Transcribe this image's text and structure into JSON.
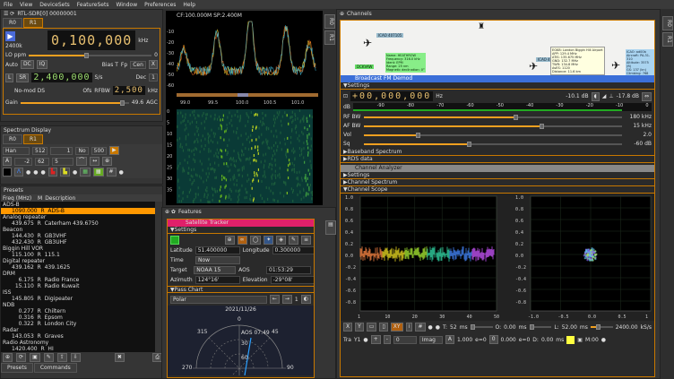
{
  "menu": [
    "File",
    "View",
    "DeviceSets",
    "FeatureSets",
    "Window",
    "Preferences",
    "Help"
  ],
  "device": {
    "title": "RTL-SDR[0] 00000001",
    "tabs": [
      "R0",
      "R1"
    ],
    "active_tab": "R1",
    "sample_rate_label": "2400k",
    "frequency": "0,100,000",
    "freq_unit": "kHz",
    "lo_ppm_label": "LO ppm",
    "lo_ppm_value": "0",
    "auto": "Auto",
    "dc": "DC",
    "iq": "IQ",
    "bias_t": "Bias T",
    "fp": "Fp",
    "fp_select": "Cen",
    "x": "X",
    "l": "L",
    "sr": "SR",
    "sr_value": "2,400,000",
    "sr_unit": "S/s",
    "dec_label": "Dec",
    "dec_value": "1",
    "nomod": "No-mod DS",
    "ofs": "Ofs",
    "rfbw": "RFBW",
    "rfbw_value": "2,500",
    "rfbw_unit": "kHz",
    "gain_label": "Gain",
    "gain_value": "49.6",
    "agc": "AGC",
    "gain_level": 0.92
  },
  "spectrum_display": {
    "title": "Spectrum Display",
    "tabs": [
      "R0",
      "R1"
    ],
    "active_tab": "R1",
    "window": "Han",
    "fft": "512",
    "avg": "1",
    "avg_mode": "No",
    "rate": "500",
    "a": "A",
    "ref": "-2",
    "range": "62",
    "step": "5"
  },
  "presets": {
    "title": "Presets",
    "col_freq": "Freq (MHz)",
    "col_m": "M",
    "col_desc": "Description",
    "groups": [
      {
        "name": "ADS-B",
        "items": [
          "1090.000  R  ADS-B"
        ]
      },
      {
        "name": "Analog repeater",
        "items": [
          "439.675  R  Caterham 439.6750"
        ]
      },
      {
        "name": "Beacon",
        "items": [
          "144.430  R  GB3VHF",
          "432.430  R  GB3UHF"
        ]
      },
      {
        "name": "Biggin Hill VOR",
        "items": [
          "115.100  R  115.1"
        ]
      },
      {
        "name": "Digital repeater",
        "items": [
          "439.162  R  439.1625"
        ]
      },
      {
        "name": "DRM",
        "items": [
          "    6.175  R  Radio France",
          "  15.110  R  Radio Kuwait"
        ]
      },
      {
        "name": "ISS",
        "items": [
          "145.805  R  Digipeater"
        ]
      },
      {
        "name": "NDB",
        "items": [
          "    0.277  R  Chiltern",
          "    0.316  R  Epsom",
          "    0.322  R  London City"
        ]
      },
      {
        "name": "Radar",
        "items": [
          "143.053  R  Graves"
        ]
      },
      {
        "name": "Radio Astronomy",
        "items": [
          "1420.400  R  HI"
        ]
      }
    ],
    "bottom_tabs": [
      "Presets",
      "Commands"
    ]
  },
  "main_spectrum": {
    "header": "CF:100.000M SP:2.400M",
    "y_ticks": [
      "-10",
      "-20",
      "-30",
      "-40",
      "-50",
      "-60"
    ],
    "x_ticks": [
      "99.0",
      "99.5",
      "100.0",
      "100.5",
      "101.0"
    ],
    "wf_ticks": [
      "0",
      "5",
      "10",
      "15",
      "20",
      "25",
      "30",
      "35"
    ],
    "side_tabs": [
      "R0",
      "R1"
    ]
  },
  "features": {
    "title": "Features",
    "sat": {
      "title": "Satellite Tracker",
      "settings": "Settings",
      "lat_label": "Latitude",
      "lat": "51.400000",
      "lon_label": "Longitude",
      "lon": "0.300000",
      "time_label": "Time",
      "time": "Now",
      "target_label": "Target",
      "target": "NOAA 15",
      "aos_label": "AOS",
      "aos": "01:53:29",
      "az_label": "Azimuth",
      "az": "124°16'",
      "el_label": "Elevation",
      "el": "-29°08'",
      "pass_chart": "Pass Chart",
      "chart_type": "Polar",
      "pass_num": "1",
      "date": "2021/11/26",
      "polar_labels": [
        "0",
        "45",
        "90",
        "270",
        "315",
        "30",
        "60"
      ],
      "aos_tag": "AOS 07:49"
    }
  },
  "channels": {
    "title": "Channels",
    "side_tabs": [
      "R0",
      "R1"
    ],
    "map": {
      "labels": [
        "ICAO 407105",
        "DCKVAW",
        "ICAO 4071C8"
      ],
      "heathrow": [
        "Name: HEATHROW",
        "Frequency: 316.0 kHz",
        "Ident: EPM",
        "Range: 25 nm",
        "Magnetic declination: 0°"
      ],
      "airport": [
        "EGKB: London Biggin Hill Airport",
        "APP: 129.4 MHz",
        "ATIS: 135.675 MHz",
        "GND: 132.7 MHz",
        "TWR: 134.8 MHz",
        "AvES: 1120",
        "Distance: 11.6 km"
      ],
      "aircraft": [
        "ICAO: ad00b",
        "Aircraft: PA-31-310",
        "Altitude: 3575 (ft)",
        "GS: 137 (kn)",
        "Climbing: 768 (ft/m)"
      ]
    },
    "bfm": {
      "title": "Broadcast FM Demod",
      "settings": "Settings",
      "offset": "+00,000,000",
      "unit": "Hz",
      "power": "-10.1 dB",
      "squelch_pow": "-17.8 dB",
      "db": "dB",
      "meter_ticks": [
        "-90",
        "-80",
        "-70",
        "-60",
        "-50",
        "-40",
        "-30",
        "-20",
        "-10",
        "0"
      ],
      "sliders": [
        {
          "label": "RF BW",
          "value": "180 kHz",
          "level": 0.58
        },
        {
          "label": "AF BW",
          "value": "15 kHz",
          "level": 0.68
        },
        {
          "label": "Vol",
          "value": "2.0",
          "level": 0.2
        },
        {
          "label": "Sq",
          "value": "-60 dB",
          "level": 0.4
        }
      ],
      "sections": [
        "Baseband Spectrum",
        "RDS data"
      ]
    },
    "ca": {
      "title": "Channel Analyzer",
      "sections": [
        "Settings",
        "Channel Spectrum",
        "Channel Scope"
      ],
      "y_ticks": [
        "1.0",
        "0.8",
        "0.6",
        "0.4",
        "0.2",
        "0.0",
        "-0.2",
        "-0.4",
        "-0.6",
        "-0.8"
      ],
      "x_ticks_t": [
        "1",
        "10",
        "20",
        "30",
        "40",
        "50"
      ],
      "x_ticks_xy": [
        "-1.0",
        "-0.5",
        "0.0",
        "0.5",
        "1"
      ],
      "ctrl": {
        "x": "X",
        "y": "Y",
        "xy": "XY",
        "t_label": "T:",
        "t_val": "52",
        "t_unit": "ms",
        "o_label": "O:",
        "o_val": "0.00",
        "o_unit": "ms",
        "l_label": "L:",
        "l_val": "52.00",
        "l_unit": "ms",
        "rate": "2400.00",
        "rate_unit": "kS/s",
        "tra": "Tra",
        "y1": "Y1",
        "sel0": "0",
        "imag": "Imag",
        "a": "A",
        "gain1": "1.000",
        "e0": "e=0",
        "zero": "0",
        "gain2": "0.000",
        "e0b": "e=0",
        "d_label": "D:",
        "d_val": "0.00",
        "d_unit": "ms",
        "m": "M:00",
        "trace_color": "#ffff40"
      }
    }
  },
  "colors": {
    "accent": "#c87800",
    "bfm_title": "#3b6fd8",
    "sat_title": "#e0206a"
  }
}
